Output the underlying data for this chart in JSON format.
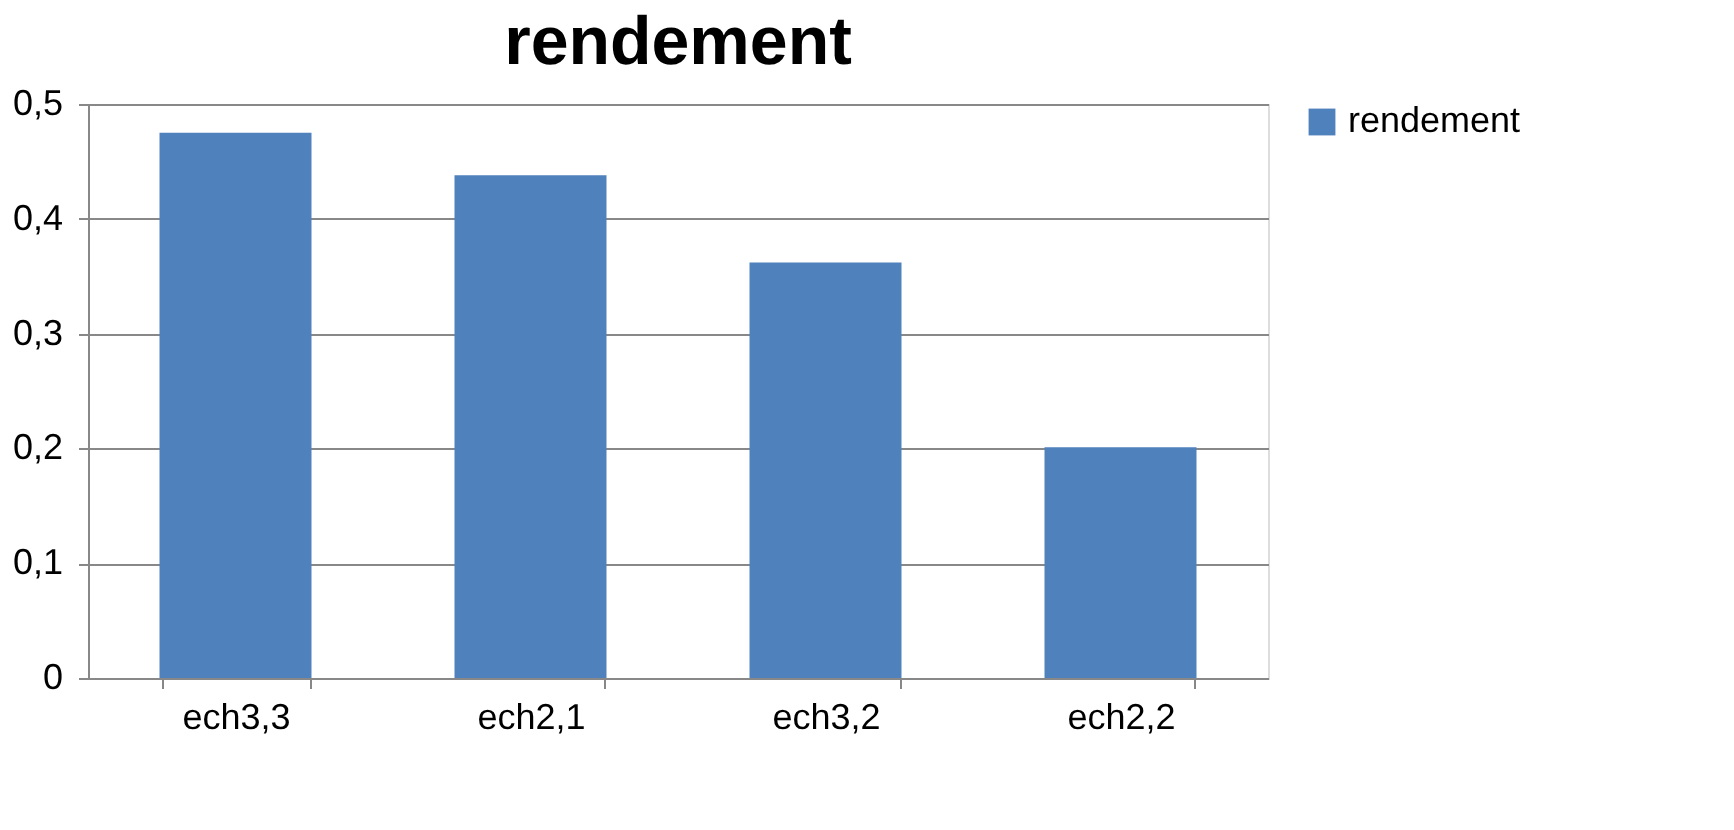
{
  "chart_data": {
    "type": "bar",
    "title": "rendement",
    "categories": [
      "ech3,3",
      "ech2,1",
      "ech3,2",
      "ech2,2"
    ],
    "series": [
      {
        "name": "rendement",
        "color": "#4f81bd",
        "values": [
          0.475,
          0.438,
          0.362,
          0.201
        ]
      }
    ],
    "ylim": [
      0,
      0.5
    ],
    "yticks": [
      0,
      {
        "value": 0.1,
        "label": "0,1"
      },
      {
        "value": 0.2,
        "label": "0,2"
      },
      {
        "value": 0.3,
        "label": "0,3"
      },
      {
        "value": 0.4,
        "label": "0,4"
      },
      {
        "value": 0.5,
        "label": "0,5"
      }
    ],
    "grid": "y",
    "legend": "right"
  }
}
